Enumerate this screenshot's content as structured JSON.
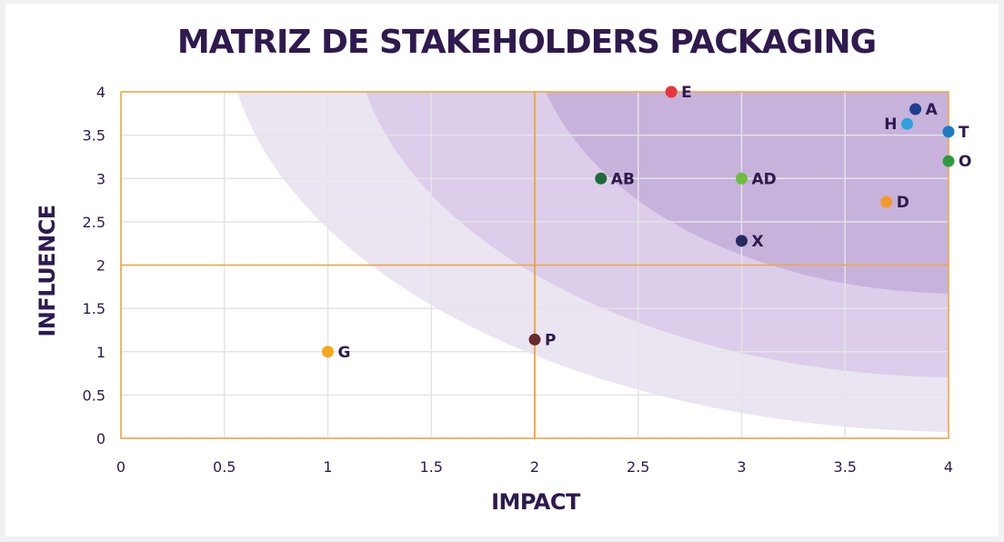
{
  "chart_data": {
    "type": "scatter",
    "title": "MATRIZ DE STAKEHOLDERS PACKAGING",
    "xlabel": "IMPACT",
    "ylabel": "INFLUENCE",
    "xlim": [
      0,
      4
    ],
    "ylim": [
      0,
      4
    ],
    "x_ticks": [
      "0",
      "0.5",
      "1",
      "1.5",
      "2",
      "2.5",
      "3",
      "3.5",
      "4"
    ],
    "y_ticks": [
      "0",
      "0.5",
      "1",
      "1.5",
      "2",
      "2.5",
      "3",
      "3.5",
      "4"
    ],
    "quadrant_lines": {
      "x": 2,
      "y": 2
    },
    "grid": true,
    "points": [
      {
        "label": "E",
        "x": 2.66,
        "y": 4.0,
        "color": "#e8343a",
        "label_side": "right"
      },
      {
        "label": "A",
        "x": 3.84,
        "y": 3.8,
        "color": "#1d3f8f",
        "label_side": "right"
      },
      {
        "label": "H",
        "x": 3.8,
        "y": 3.63,
        "color": "#2fa1dc",
        "label_side": "left"
      },
      {
        "label": "T",
        "x": 4.0,
        "y": 3.54,
        "color": "#1a7cc4",
        "label_side": "right"
      },
      {
        "label": "O",
        "x": 4.0,
        "y": 3.2,
        "color": "#2e9a3e",
        "label_side": "right"
      },
      {
        "label": "AB",
        "x": 2.32,
        "y": 3.0,
        "color": "#1f6b38",
        "label_side": "right"
      },
      {
        "label": "AD",
        "x": 3.0,
        "y": 3.0,
        "color": "#6dbd3c",
        "label_side": "right"
      },
      {
        "label": "D",
        "x": 3.7,
        "y": 2.73,
        "color": "#f39a2c",
        "label_side": "right"
      },
      {
        "label": "X",
        "x": 3.0,
        "y": 2.28,
        "color": "#252b5e",
        "label_side": "right"
      },
      {
        "label": "P",
        "x": 2.0,
        "y": 1.14,
        "color": "#6b2a2f",
        "label_side": "right"
      },
      {
        "label": "G",
        "x": 1.0,
        "y": 1.0,
        "color": "#f5a81c",
        "label_side": "right"
      }
    ]
  },
  "colors": {
    "text": "#2e1a4f",
    "quadrant_line": "#f0a23a",
    "grid": "#e4e4e8",
    "band_outer": "#ebe4f1",
    "band_middle": "#dccdea",
    "band_inner": "#c7b2db"
  }
}
